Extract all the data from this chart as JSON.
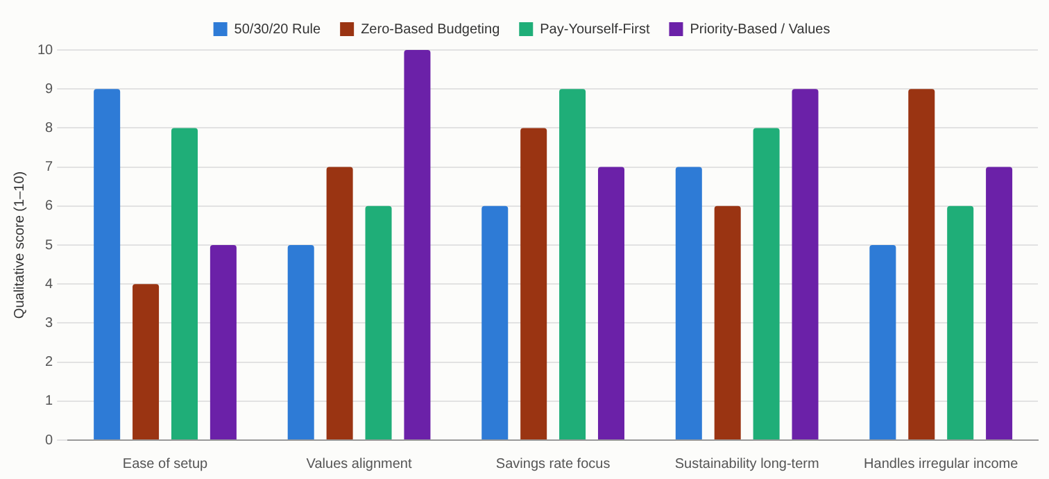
{
  "chart_data": {
    "type": "bar",
    "categories": [
      "Ease of setup",
      "Values alignment",
      "Savings rate focus",
      "Sustainability long-term",
      "Handles irregular income"
    ],
    "series": [
      {
        "name": "50/30/20 Rule",
        "color": "#2e7bd6",
        "values": [
          9,
          5,
          6,
          7,
          5
        ]
      },
      {
        "name": "Zero-Based Budgeting",
        "color": "#9a3412",
        "values": [
          4,
          7,
          8,
          6,
          9
        ]
      },
      {
        "name": "Pay-Yourself-First",
        "color": "#1fae78",
        "values": [
          8,
          6,
          9,
          8,
          6
        ]
      },
      {
        "name": "Priority-Based / Values",
        "color": "#6b21a8",
        "values": [
          5,
          10,
          7,
          9,
          7
        ]
      }
    ],
    "ylabel": "Qualitative score (1–10)",
    "ylim": [
      0,
      10
    ],
    "yticks": [
      0,
      1,
      2,
      3,
      4,
      5,
      6,
      7,
      8,
      9,
      10
    ],
    "grid": "y",
    "legend": "top"
  }
}
